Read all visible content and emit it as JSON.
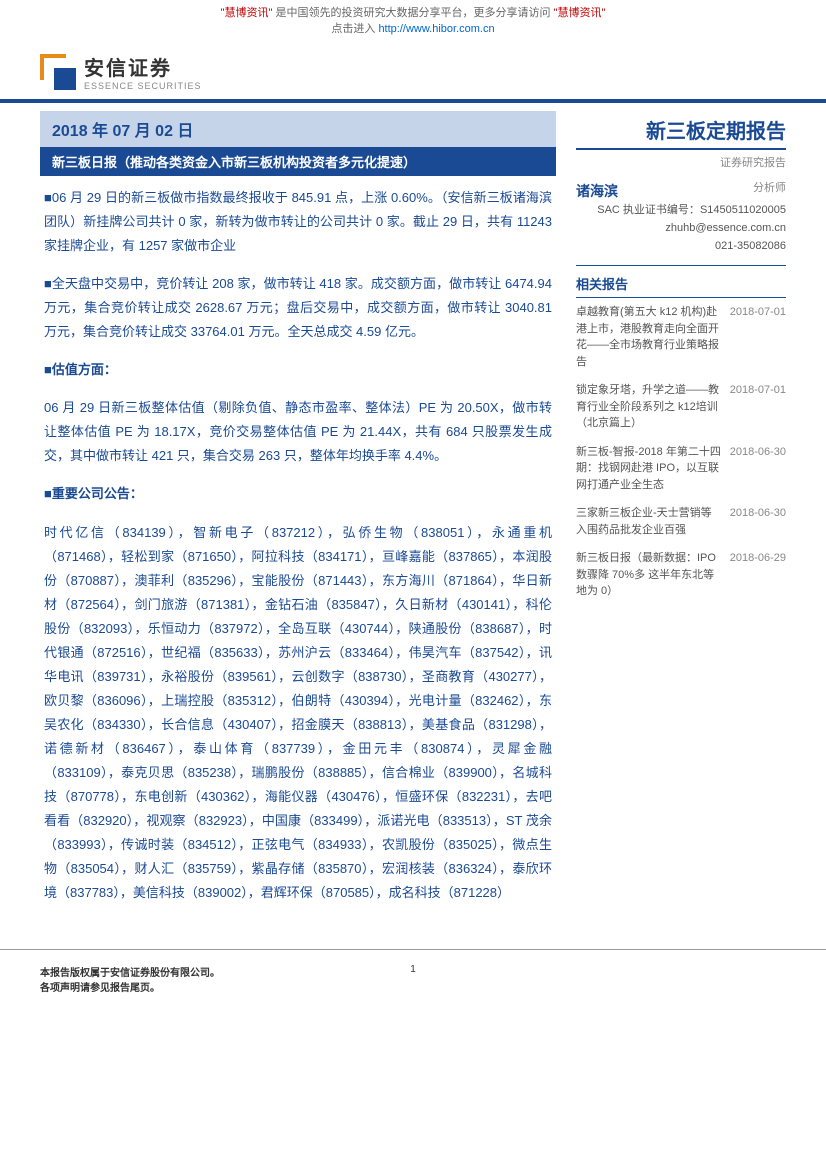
{
  "banner": {
    "prefix_brand": "\"慧博资讯\"",
    "mid": "是中国领先的投资研究大数据分享平台，更多分享请访问",
    "suffix_brand": "\"慧博资讯\"",
    "click": "点击进入",
    "url": "http://www.hibor.com.cn"
  },
  "logo": {
    "cn": "安信证券",
    "en": "ESSENCE SECURITIES"
  },
  "date_band": "2018 年 07 月 02 日",
  "title_band": "新三板日报（推动各类资金入市新三板机构投资者多元化提速）",
  "body": {
    "p1": "■06 月 29 日的新三板做市指数最终报收于 845.91 点，上涨 0.60%。（安信新三板诸海滨团队）新挂牌公司共计 0 家，新转为做市转让的公司共计 0 家。截止 29 日，共有 11243 家挂牌企业，有 1257 家做市企业",
    "p2": "■全天盘中交易中，竞价转让 208 家，做市转让 418 家。成交额方面，做市转让 6474.94 万元，集合竞价转让成交 2628.67 万元；盘后交易中，成交额方面，做市转让 3040.81 万元，集合竞价转让成交 33764.01 万元。全天总成交 4.59 亿元。",
    "h3": "■估值方面：",
    "p3": "06 月 29 日新三板整体估值（剔除负值、静态市盈率、整体法）PE 为 20.50X，做市转让整体估值 PE 为 18.17X，竞价交易整体估值 PE 为 21.44X，共有 684 只股票发生成交，其中做市转让 421 只，集合交易 263 只，整体年均换手率 4.4%。",
    "h4": "■重要公司公告：",
    "p4": "时代亿信（834139），智新电子（837212），弘侨生物（838051），永通重机（871468），轻松到家（871650），阿拉科技（834171），亘峰嘉能（837865），本润股份（870887），澳菲利（835296），宝能股份（871443），东方海川（871864），华日新材（872564），剑门旅游（871381），金钻石油（835847），久日新材（430141），科伦股份（832093），乐恒动力（837972），全岛互联（430744），陕通股份（838687），时代银通（872516），世纪福（835633），苏州沪云（833464），伟昊汽车（837542），讯华电讯（839731），永裕股份（839561），云创数字（838730），圣商教育（430277），欧贝黎（836096），上瑞控股（835312），伯朗特（430394），光电计量（832462），东吴农化（834330），长合信息（430407），招金膜天（838813），美基食品（831298），诺德新材（836467），泰山体育（837739），金田元丰（830874），灵犀金融（833109），泰克贝思（835238），瑞鹏股份（838885），信合棉业（839900），名城科技（870778），东电创新（430362），海能仪器（430476），恒盛环保（832231），去吧看看（832920），视观察（832923），中国康（833499），派诺光电（833513），ST 茂余（833993），传诚时装（834512），正弦电气（834933），农凯股份（835025），微点生物（835054），财人汇（835759），紫晶存储（835870），宏润核装（836324），泰欣环境（837783），美信科技（839002），君辉环保（870585），成名科技（871228）"
  },
  "side": {
    "title": "新三板定期报告",
    "sub": "证券研究报告",
    "analyst": {
      "name": "诸海滨",
      "role": "分析师",
      "sac_label": "SAC 执业证书编号：",
      "sac_no": "S1450511020005",
      "email": "zhuhb@essence.com.cn",
      "phone": "021-35082086"
    },
    "related_head": "相关报告",
    "related": [
      {
        "title": "卓越教育(第五大 k12 机构)赴港上市，港股教育走向全面开花——全市场教育行业策略报告",
        "date": "2018-07-01"
      },
      {
        "title": "锁定象牙塔，升学之道——教育行业全阶段系列之 k12培训（北京篇上）",
        "date": "2018-07-01"
      },
      {
        "title": "新三板-智报-2018 年第二十四期：找钢网赴港 IPO，以互联网打通产业全生态",
        "date": "2018-06-30"
      },
      {
        "title": "三家新三板企业-天士营销等入围药品批发企业百强",
        "date": "2018-06-30"
      },
      {
        "title": "新三板日报（最新数据：IPO 数骤降 70%多 这半年东北等地为 0）",
        "date": "2018-06-29"
      }
    ]
  },
  "footer": {
    "l1": "本报告版权属于安信证券股份有限公司。",
    "l2": "各项声明请参见报告尾页。",
    "page": "1"
  },
  "colors": {
    "brand_blue": "#1a4a94",
    "brand_orange": "#e88b1a",
    "band_light": "#c5d4e8"
  }
}
